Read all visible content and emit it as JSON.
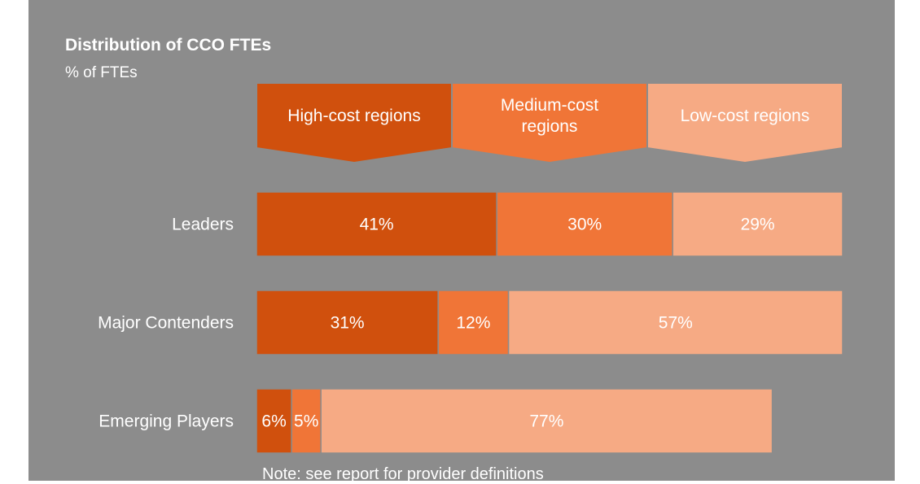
{
  "title": "Distribution of CCO FTEs",
  "subtitle": "% of FTEs",
  "note": "Note: see report for provider definitions",
  "colors": {
    "background": "#8c8c8c",
    "high_cost": "#d0500d",
    "medium_cost": "#f07537",
    "low_cost": "#f6aa84",
    "text": "#ffffff"
  },
  "headers": [
    {
      "lines": [
        "High-cost regions"
      ]
    },
    {
      "lines": [
        "Medium-cost",
        "regions"
      ]
    },
    {
      "lines": [
        "Low-cost regions"
      ]
    }
  ],
  "chart_data": {
    "type": "bar",
    "orientation": "horizontal",
    "stacked": true,
    "unit": "%",
    "categories": [
      "Leaders",
      "Major Contenders",
      "Emerging Players"
    ],
    "series": [
      {
        "name": "High-cost regions",
        "values": [
          41,
          31,
          6
        ],
        "labels": [
          "41%",
          "31%",
          "6%"
        ]
      },
      {
        "name": "Medium-cost regions",
        "values": [
          30,
          12,
          5
        ],
        "labels": [
          "30%",
          "12%",
          "5%"
        ]
      },
      {
        "name": "Low-cost regions",
        "values": [
          29,
          57,
          77
        ],
        "labels": [
          "29%",
          "57%",
          "77%"
        ]
      }
    ],
    "xlim": [
      0,
      100
    ],
    "grid": false
  }
}
